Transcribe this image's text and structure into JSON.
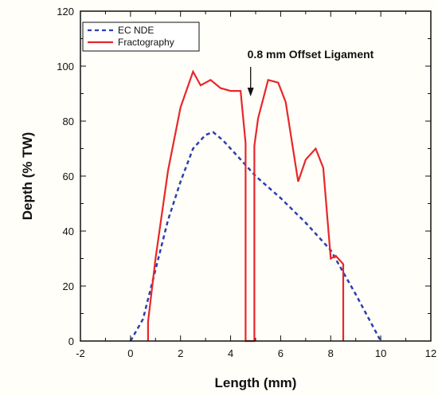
{
  "chart_data": {
    "type": "line",
    "xlabel": "Length (mm)",
    "ylabel": "Depth (% TW)",
    "xlim": [
      -2,
      12
    ],
    "ylim": [
      0,
      120
    ],
    "xticks": [
      -2,
      0,
      2,
      4,
      6,
      8,
      10,
      12
    ],
    "yticks": [
      0,
      20,
      40,
      60,
      80,
      100,
      120
    ],
    "grid": false,
    "legend_position": "top-left",
    "series": [
      {
        "name": "EC NDE",
        "color": "#2a3fb0",
        "style": "dashed",
        "x": [
          0,
          0.5,
          1,
          1.5,
          2,
          2.5,
          3,
          3.3,
          3.7,
          4.2,
          5,
          6,
          7,
          8,
          9,
          10
        ],
        "y": [
          0,
          8,
          26,
          44,
          58,
          70,
          75,
          76,
          73,
          68,
          60,
          52,
          43,
          33,
          17,
          0
        ]
      },
      {
        "name": "Fractography",
        "color": "#e8262b",
        "style": "solid",
        "x": [
          0.7,
          0.7,
          1.0,
          1.5,
          2.0,
          2.5,
          2.8,
          3.2,
          3.6,
          4.0,
          4.4,
          4.6,
          4.6,
          4.95,
          4.95,
          5.1,
          5.5,
          5.9,
          6.2,
          6.7,
          7.0,
          7.4,
          7.7,
          8.0,
          8.2,
          8.5,
          8.5
        ],
        "y": [
          0,
          7,
          30,
          62,
          85,
          98,
          93,
          95,
          92,
          91,
          91,
          72,
          0,
          0,
          71,
          81,
          95,
          94,
          87,
          58,
          66,
          70,
          63,
          30,
          31,
          28,
          0
        ]
      }
    ],
    "annotations": [
      {
        "text": "0.8 mm Offset Ligament",
        "arrow_target_x": 4.8,
        "arrow_target_y": 89
      }
    ]
  }
}
